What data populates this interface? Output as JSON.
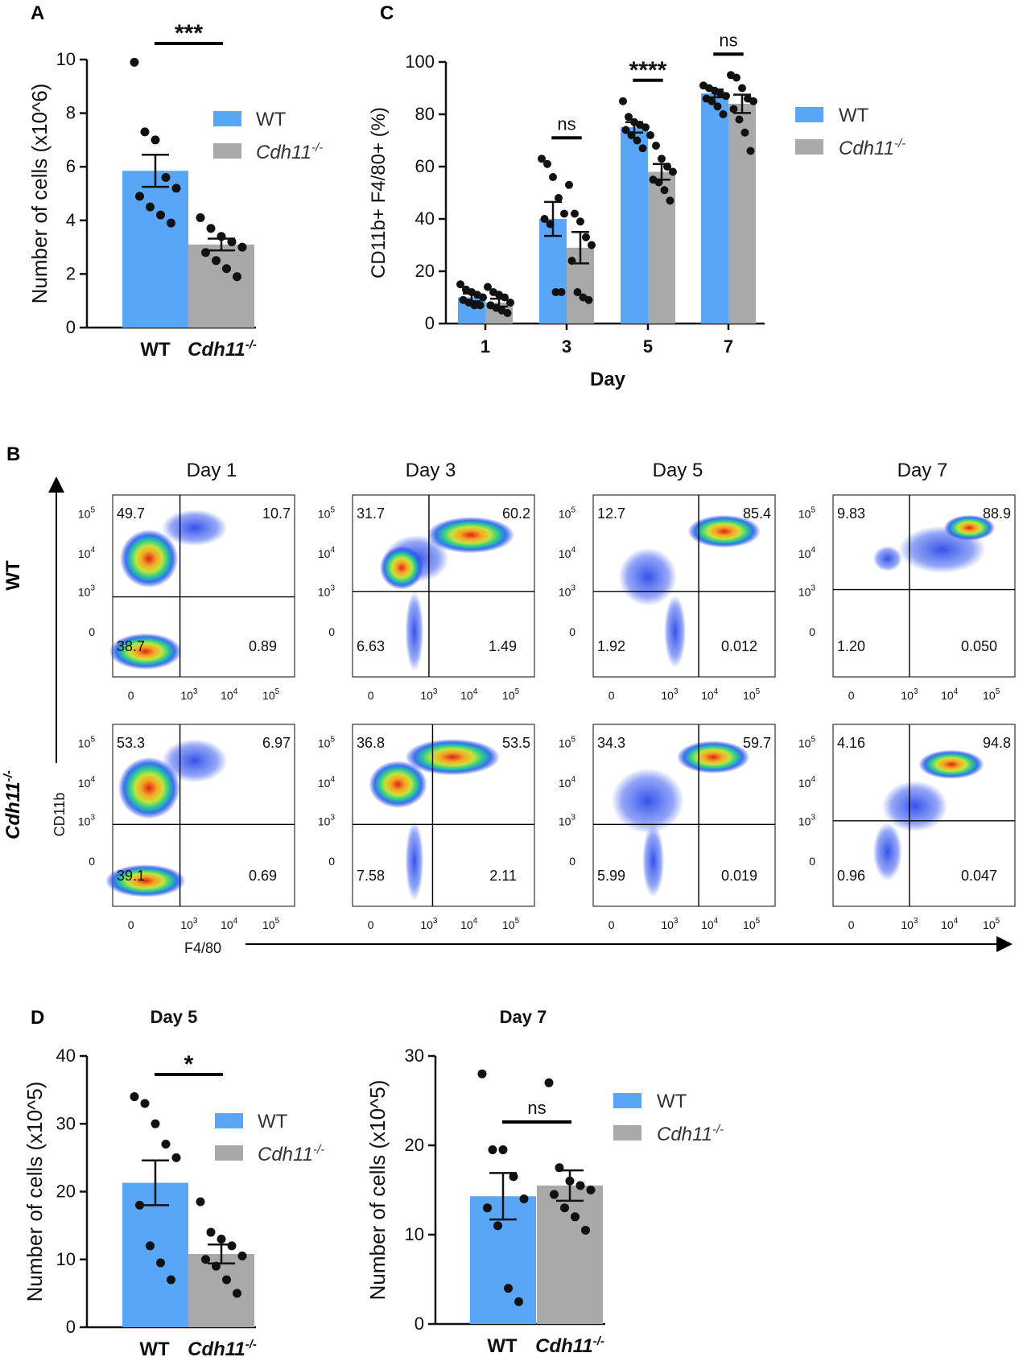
{
  "colors": {
    "wt": "#58A6F5",
    "ko": "#A9A9AB",
    "axis": "#111111"
  },
  "panel_letters": {
    "a": "A",
    "b": "B",
    "c": "C",
    "d": "D"
  },
  "legend": {
    "wt": "WT",
    "ko_base": "Cdh11",
    "ko_sup": "-/-"
  },
  "flow": {
    "row_labels": {
      "wt": "WT",
      "ko_base": "Cdh11",
      "ko_sup": "-/-"
    },
    "day_titles": [
      "Day 1",
      "Day 3",
      "Day 5",
      "Day 7"
    ],
    "y_axis_title": "CD11b",
    "x_axis_title": "F4/80",
    "y_ticks": [
      "10",
      "10",
      "10",
      "0"
    ],
    "y_tick_exps": [
      "5",
      "4",
      "3",
      ""
    ],
    "x_ticks": [
      "0",
      "10",
      "10",
      "10"
    ],
    "x_tick_exps": [
      "",
      "3",
      "4",
      "5"
    ],
    "plots": [
      {
        "row": "WT",
        "day": "Day 1",
        "q": [
          "49.7",
          "10.7",
          "38.7",
          "0.89"
        ]
      },
      {
        "row": "WT",
        "day": "Day 3",
        "q": [
          "31.7",
          "60.2",
          "6.63",
          "1.49"
        ]
      },
      {
        "row": "WT",
        "day": "Day 5",
        "q": [
          "12.7",
          "85.4",
          "1.92",
          "0.012"
        ]
      },
      {
        "row": "WT",
        "day": "Day 7",
        "q": [
          "9.83",
          "88.9",
          "1.20",
          "0.050"
        ]
      },
      {
        "row": "Cdh11-/-",
        "day": "Day 1",
        "q": [
          "53.3",
          "6.97",
          "39.1",
          "0.69"
        ]
      },
      {
        "row": "Cdh11-/-",
        "day": "Day 3",
        "q": [
          "36.8",
          "53.5",
          "7.58",
          "2.11"
        ]
      },
      {
        "row": "Cdh11-/-",
        "day": "Day 5",
        "q": [
          "34.3",
          "59.7",
          "5.99",
          "0.019"
        ]
      },
      {
        "row": "Cdh11-/-",
        "day": "Day 7",
        "q": [
          "4.16",
          "94.8",
          "0.96",
          "0.047"
        ]
      }
    ]
  },
  "chart_data": [
    {
      "id": "A",
      "type": "bar",
      "title": "",
      "categories": [
        "WT",
        "Cdh11-/-"
      ],
      "values": [
        5.85,
        3.1
      ],
      "sem": [
        0.6,
        0.22
      ],
      "points": [
        [
          9.9,
          7.3,
          7.0,
          5.6,
          5.2,
          4.9,
          4.5,
          4.2,
          3.9
        ],
        [
          4.1,
          3.7,
          3.4,
          3.2,
          3.0,
          2.8,
          2.5,
          2.2,
          1.9
        ]
      ],
      "ylabel": "Number of cells (x10^6)",
      "xlabel": "",
      "ylim": [
        0,
        10
      ],
      "yticks": [
        0,
        2,
        4,
        6,
        8,
        10
      ],
      "significance": [
        {
          "from": 0,
          "to": 1,
          "label": "***"
        }
      ]
    },
    {
      "id": "C",
      "type": "bar",
      "title": "",
      "categories": [
        "1",
        "3",
        "5",
        "7"
      ],
      "xlabel": "Day",
      "ylabel": "CD11b+ F4/80+ (%)",
      "ylim": [
        0,
        100
      ],
      "yticks": [
        0,
        20,
        40,
        60,
        80,
        100
      ],
      "series": [
        {
          "name": "WT",
          "values": [
            10,
            40,
            75,
            88
          ],
          "sem": [
            1.5,
            6.5,
            2,
            1.5
          ],
          "points": [
            [
              15,
              13,
              12,
              11,
              10,
              9,
              8,
              7,
              7
            ],
            [
              63,
              61,
              56,
              48,
              42,
              40,
              38,
              12,
              12
            ],
            [
              85,
              79,
              77,
              76,
              75,
              74,
              72,
              70,
              67
            ],
            [
              91,
              90,
              89,
              88,
              87,
              86,
              85,
              83,
              80
            ]
          ]
        },
        {
          "name": "Cdh11-/-",
          "values": [
            8,
            29,
            58,
            84
          ],
          "sem": [
            1.5,
            6,
            3,
            3.5
          ],
          "points": [
            [
              14,
              12,
              11,
              10,
              8,
              7,
              6,
              5,
              4
            ],
            [
              53,
              42,
              39,
              33,
              30,
              24,
              12,
              10,
              9
            ],
            [
              72,
              68,
              63,
              60,
              58,
              55,
              54,
              51,
              47
            ],
            [
              95,
              94,
              90,
              86,
              85,
              82,
              78,
              73,
              66
            ]
          ]
        }
      ],
      "significance": [
        {
          "category": "3",
          "label": "ns"
        },
        {
          "category": "5",
          "label": "****"
        },
        {
          "category": "7",
          "label": "ns"
        }
      ]
    },
    {
      "id": "D1",
      "type": "bar",
      "title": "Day 5",
      "categories": [
        "WT",
        "Cdh11-/-"
      ],
      "values": [
        21.3,
        10.8
      ],
      "sem": [
        3.3,
        1.4
      ],
      "points": [
        [
          34,
          33,
          30,
          27,
          25,
          18,
          12,
          9.5,
          7
        ],
        [
          18.5,
          14,
          13,
          12,
          10.5,
          10,
          9,
          7,
          5
        ]
      ],
      "ylabel": "Number of cells (x10^5)",
      "xlabel": "",
      "ylim": [
        0,
        40
      ],
      "yticks": [
        0,
        10,
        20,
        30,
        40
      ],
      "significance": [
        {
          "from": 0,
          "to": 1,
          "label": "*"
        }
      ]
    },
    {
      "id": "D2",
      "type": "bar",
      "title": "Day 7",
      "categories": [
        "WT",
        "Cdh11-/-"
      ],
      "values": [
        14.3,
        15.5
      ],
      "sem": [
        2.6,
        1.7
      ],
      "points": [
        [
          28,
          19.5,
          19.5,
          16.5,
          14,
          13,
          11,
          4,
          2.5
        ],
        [
          27,
          17.5,
          16,
          15.5,
          15,
          14.5,
          13,
          12,
          10.5
        ]
      ],
      "ylabel": "Number of cells (x10^5)",
      "xlabel": "",
      "ylim": [
        0,
        30
      ],
      "yticks": [
        0,
        10,
        20,
        30
      ],
      "significance": [
        {
          "from": 0,
          "to": 1,
          "label": "ns"
        }
      ]
    }
  ]
}
